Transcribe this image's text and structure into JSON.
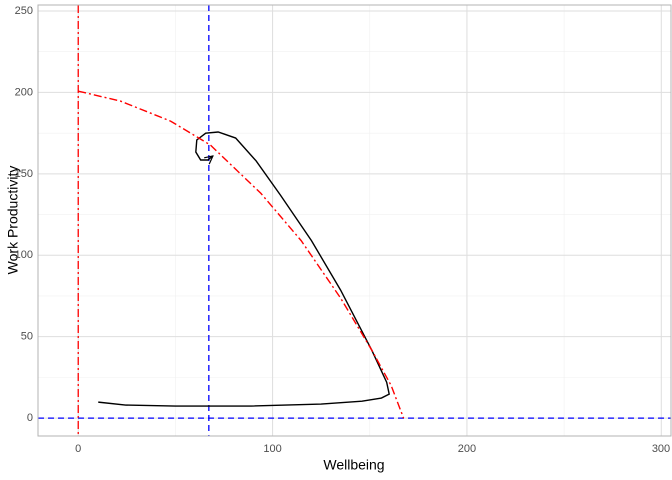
{
  "chart_data": {
    "type": "line",
    "x_label": "Wellbeing",
    "y_label": "Work Productivity",
    "xlim": [
      -20.7,
      305
    ],
    "ylim": [
      -11,
      253.7
    ],
    "xticks": [
      0,
      100,
      200,
      300
    ],
    "yticks": [
      0,
      50,
      100,
      150,
      200,
      250
    ],
    "grid": true,
    "series": [
      {
        "color": "#000000",
        "dash": "solid",
        "arrow": true,
        "x": [
          10.3,
          24.3,
          50,
          89,
          125,
          146,
          156,
          160,
          158.7,
          151,
          135,
          120,
          104,
          91.5,
          81,
          72,
          65.6,
          61,
          60.5,
          63,
          66.7,
          69.3
        ],
        "values": [
          9.8,
          8,
          7.4,
          7.4,
          8.6,
          10.4,
          12.3,
          14.7,
          22,
          41.8,
          78.6,
          109,
          137,
          158,
          172,
          175.7,
          175,
          170.8,
          163.4,
          158.5,
          158.5,
          161
        ]
      },
      {
        "color": "#ff0000",
        "dash": "dotdash",
        "arrow": false,
        "x": [
          0,
          21.7,
          47.5,
          68,
          94,
          114.7,
          135,
          151,
          161,
          167.4
        ],
        "values": [
          200.8,
          194.7,
          182.4,
          167.7,
          138,
          109,
          73.7,
          41.8,
          20,
          0
        ]
      }
    ],
    "reference_lines": [
      {
        "axis": "x",
        "value": 0,
        "color": "#ff0000",
        "dash": "dotdash"
      },
      {
        "axis": "x",
        "value": 67.2,
        "color": "#0000ff",
        "dash": "dashed"
      },
      {
        "axis": "y",
        "value": 0,
        "color": "#0000ff",
        "dash": "dashed"
      }
    ]
  }
}
